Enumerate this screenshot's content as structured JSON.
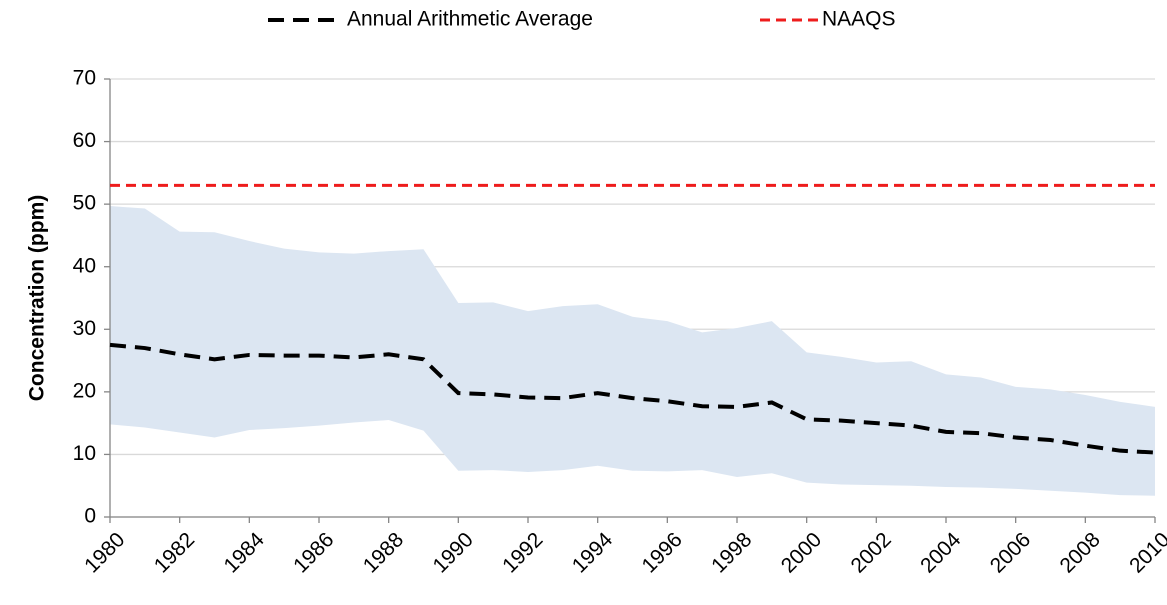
{
  "chart_data": {
    "type": "line",
    "y_label": "Concentration (ppm)",
    "x": [
      1980,
      1981,
      1982,
      1983,
      1984,
      1985,
      1986,
      1987,
      1988,
      1989,
      1990,
      1991,
      1992,
      1993,
      1994,
      1995,
      1996,
      1997,
      1998,
      1999,
      2000,
      2001,
      2002,
      2003,
      2004,
      2005,
      2006,
      2007,
      2008,
      2009,
      2010
    ],
    "xlim": [
      1980,
      2010
    ],
    "xticks": [
      1980,
      1982,
      1984,
      1986,
      1988,
      1990,
      1992,
      1994,
      1996,
      1998,
      2000,
      2002,
      2004,
      2006,
      2008,
      2010
    ],
    "ylim": [
      0,
      70
    ],
    "yticks": [
      0,
      10,
      20,
      30,
      40,
      50,
      60,
      70
    ],
    "grid": true,
    "legend": "top",
    "series": [
      {
        "name": "Annual Arithmetic Average",
        "color": "#000000",
        "values": [
          27.5,
          27,
          26,
          25.2,
          25.9,
          25.8,
          25.8,
          25.5,
          26,
          25.2,
          19.8,
          19.6,
          19.1,
          19,
          19.8,
          19,
          18.5,
          17.7,
          17.6,
          18.3,
          15.6,
          15.4,
          15,
          14.6,
          13.6,
          13.4,
          12.7,
          12.3,
          11.4,
          10.6,
          10.3
        ]
      }
    ],
    "reference_lines": [
      {
        "name": "NAAQS",
        "value": 53,
        "color": "#ee1c1c"
      }
    ],
    "band": {
      "color": "#dce6f2",
      "upper": [
        49.7,
        49.3,
        45.6,
        45.5,
        44.1,
        42.9,
        42.3,
        42.1,
        42.5,
        42.8,
        34.2,
        34.3,
        32.9,
        33.7,
        34,
        32,
        31.3,
        29.5,
        30.2,
        31.3,
        26.3,
        25.6,
        24.7,
        24.9,
        22.8,
        22.3,
        20.8,
        20.4,
        19.5,
        18.4,
        17.6
      ],
      "lower": [
        14.8,
        14.3,
        13.5,
        12.7,
        13.9,
        14.2,
        14.6,
        15.1,
        15.5,
        13.8,
        7.4,
        7.5,
        7.2,
        7.5,
        8.2,
        7.4,
        7.3,
        7.5,
        6.4,
        7,
        5.5,
        5.2,
        5.1,
        5,
        4.8,
        4.7,
        4.5,
        4.2,
        3.9,
        3.5,
        3.4
      ]
    }
  }
}
